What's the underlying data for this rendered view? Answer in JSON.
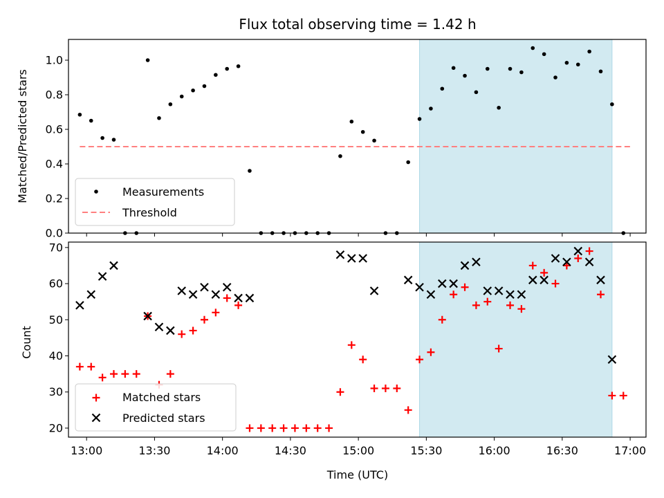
{
  "chart_data": {
    "title": "Flux total observing time = 1.42 h",
    "xlabel": "Time (UTC)",
    "x_ticks": [
      "13:00",
      "13:30",
      "14:00",
      "14:30",
      "15:00",
      "15:30",
      "16:00",
      "16:30",
      "17:00"
    ],
    "colors": {
      "measurements": "#000000",
      "threshold": "#ff7f7f",
      "matched": "#ff0000",
      "predicted": "#000000",
      "shade": "#add8e6"
    },
    "shaded_interval": [
      "15:27",
      "16:52"
    ],
    "panels": [
      {
        "type": "scatter",
        "ylabel": "Matched/Predicted stars",
        "ylim": [
          0,
          1.12
        ],
        "y_ticks": [
          "0.0",
          "0.2",
          "0.4",
          "0.6",
          "0.8",
          "1.0"
        ],
        "legend": {
          "position": "lower-left",
          "entries": [
            "Measurements",
            "Threshold"
          ]
        },
        "threshold": {
          "value": 0.5,
          "from": "12:57",
          "to": "17:00"
        },
        "series": [
          {
            "name": "Measurements",
            "marker": "dot",
            "points": [
              [
                "12:57",
                0.685
              ],
              [
                "13:02",
                0.65
              ],
              [
                "13:07",
                0.55
              ],
              [
                "13:12",
                0.54
              ],
              [
                "13:17",
                0.0
              ],
              [
                "13:22",
                0.0
              ],
              [
                "13:27",
                1.0
              ],
              [
                "13:32",
                0.665
              ],
              [
                "13:37",
                0.745
              ],
              [
                "13:42",
                0.79
              ],
              [
                "13:47",
                0.825
              ],
              [
                "13:52",
                0.85
              ],
              [
                "13:57",
                0.915
              ],
              [
                "14:02",
                0.95
              ],
              [
                "14:07",
                0.965
              ],
              [
                "14:12",
                0.36
              ],
              [
                "14:17",
                0.0
              ],
              [
                "14:22",
                0.0
              ],
              [
                "14:27",
                0.0
              ],
              [
                "14:32",
                0.0
              ],
              [
                "14:37",
                0.0
              ],
              [
                "14:42",
                0.0
              ],
              [
                "14:47",
                0.0
              ],
              [
                "14:52",
                0.445
              ],
              [
                "14:57",
                0.645
              ],
              [
                "15:02",
                0.585
              ],
              [
                "15:07",
                0.535
              ],
              [
                "15:12",
                0.0
              ],
              [
                "15:17",
                0.0
              ],
              [
                "15:22",
                0.41
              ],
              [
                "15:27",
                0.66
              ],
              [
                "15:32",
                0.72
              ],
              [
                "15:37",
                0.835
              ],
              [
                "15:42",
                0.955
              ],
              [
                "15:47",
                0.91
              ],
              [
                "15:52",
                0.815
              ],
              [
                "15:57",
                0.95
              ],
              [
                "16:02",
                0.725
              ],
              [
                "16:07",
                0.95
              ],
              [
                "16:12",
                0.93
              ],
              [
                "16:17",
                1.07
              ],
              [
                "16:22",
                1.035
              ],
              [
                "16:27",
                0.9
              ],
              [
                "16:32",
                0.985
              ],
              [
                "16:37",
                0.975
              ],
              [
                "16:42",
                1.05
              ],
              [
                "16:47",
                0.935
              ],
              [
                "16:52",
                0.745
              ],
              [
                "16:57",
                0.0
              ]
            ]
          }
        ]
      },
      {
        "type": "scatter",
        "ylabel": "Count",
        "ylim": [
          17.5,
          71.5
        ],
        "y_ticks": [
          "20",
          "30",
          "40",
          "50",
          "60",
          "70"
        ],
        "legend": {
          "position": "lower-left",
          "entries": [
            "Matched stars",
            "Predicted stars"
          ]
        },
        "series": [
          {
            "name": "Matched stars",
            "marker": "plus",
            "points": [
              [
                "12:57",
                37
              ],
              [
                "13:02",
                37
              ],
              [
                "13:07",
                34
              ],
              [
                "13:12",
                35
              ],
              [
                "13:17",
                35
              ],
              [
                "13:22",
                35
              ],
              [
                "13:27",
                51
              ],
              [
                "13:32",
                32
              ],
              [
                "13:37",
                35
              ],
              [
                "13:42",
                46
              ],
              [
                "13:47",
                47
              ],
              [
                "13:52",
                50
              ],
              [
                "13:57",
                52
              ],
              [
                "14:02",
                56
              ],
              [
                "14:07",
                54
              ],
              [
                "14:12",
                20
              ],
              [
                "14:17",
                20
              ],
              [
                "14:22",
                20
              ],
              [
                "14:27",
                20
              ],
              [
                "14:32",
                20
              ],
              [
                "14:37",
                20
              ],
              [
                "14:42",
                20
              ],
              [
                "14:47",
                20
              ],
              [
                "14:52",
                30
              ],
              [
                "14:57",
                43
              ],
              [
                "15:02",
                39
              ],
              [
                "15:07",
                31
              ],
              [
                "15:12",
                31
              ],
              [
                "15:17",
                31
              ],
              [
                "15:22",
                25
              ],
              [
                "15:27",
                39
              ],
              [
                "15:32",
                41
              ],
              [
                "15:37",
                50
              ],
              [
                "15:42",
                57
              ],
              [
                "15:47",
                59
              ],
              [
                "15:52",
                54
              ],
              [
                "15:57",
                55
              ],
              [
                "16:02",
                42
              ],
              [
                "16:07",
                54
              ],
              [
                "16:12",
                53
              ],
              [
                "16:17",
                65
              ],
              [
                "16:22",
                63
              ],
              [
                "16:27",
                60
              ],
              [
                "16:32",
                65
              ],
              [
                "16:37",
                67
              ],
              [
                "16:42",
                69
              ],
              [
                "16:47",
                57
              ],
              [
                "16:52",
                29
              ],
              [
                "16:57",
                29
              ]
            ]
          },
          {
            "name": "Predicted stars",
            "marker": "x",
            "points": [
              [
                "12:57",
                54
              ],
              [
                "13:02",
                57
              ],
              [
                "13:07",
                62
              ],
              [
                "13:12",
                65
              ],
              [
                "13:27",
                51
              ],
              [
                "13:32",
                48
              ],
              [
                "13:37",
                47
              ],
              [
                "13:42",
                58
              ],
              [
                "13:47",
                57
              ],
              [
                "13:52",
                59
              ],
              [
                "13:57",
                57
              ],
              [
                "14:02",
                59
              ],
              [
                "14:07",
                56
              ],
              [
                "14:12",
                56
              ],
              [
                "14:52",
                68
              ],
              [
                "14:57",
                67
              ],
              [
                "15:02",
                67
              ],
              [
                "15:07",
                58
              ],
              [
                "15:22",
                61
              ],
              [
                "15:27",
                59
              ],
              [
                "15:32",
                57
              ],
              [
                "15:37",
                60
              ],
              [
                "15:42",
                60
              ],
              [
                "15:47",
                65
              ],
              [
                "15:52",
                66
              ],
              [
                "15:57",
                58
              ],
              [
                "16:02",
                58
              ],
              [
                "16:07",
                57
              ],
              [
                "16:12",
                57
              ],
              [
                "16:17",
                61
              ],
              [
                "16:22",
                61
              ],
              [
                "16:27",
                67
              ],
              [
                "16:32",
                66
              ],
              [
                "16:37",
                69
              ],
              [
                "16:42",
                66
              ],
              [
                "16:47",
                61
              ],
              [
                "16:52",
                39
              ]
            ]
          }
        ]
      }
    ]
  }
}
